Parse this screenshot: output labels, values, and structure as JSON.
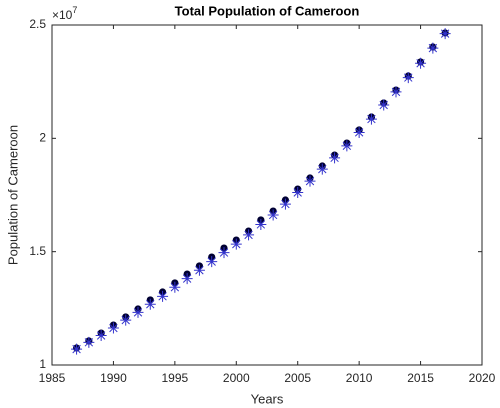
{
  "chart_data": {
    "type": "scatter",
    "title": "Total Population of Cameroon",
    "xlabel": "Years",
    "ylabel": "Population of Cameroon",
    "y_multiplier": {
      "base": "×10",
      "exponent": "7"
    },
    "x": [
      1987,
      1988,
      1989,
      1990,
      1991,
      1992,
      1993,
      1994,
      1995,
      1996,
      1997,
      1998,
      1999,
      2000,
      2001,
      2002,
      2003,
      2004,
      2005,
      2006,
      2007,
      2008,
      2009,
      2010,
      2011,
      2012,
      2013,
      2014,
      2015,
      2016,
      2017
    ],
    "series": [
      {
        "color": "#000033",
        "marker": "dot",
        "values": [
          1.075,
          1.106,
          1.141,
          1.176,
          1.212,
          1.247,
          1.287,
          1.322,
          1.362,
          1.401,
          1.437,
          1.476,
          1.516,
          1.551,
          1.591,
          1.64,
          1.679,
          1.728,
          1.776,
          1.825,
          1.878,
          1.926,
          1.979,
          2.037,
          2.094,
          2.156,
          2.213,
          2.275,
          2.337,
          2.403,
          2.465
        ]
      },
      {
        "color": "#3333cc",
        "marker": "asterisk",
        "values": [
          1.07,
          1.1,
          1.13,
          1.163,
          1.198,
          1.232,
          1.268,
          1.303,
          1.343,
          1.381,
          1.418,
          1.456,
          1.496,
          1.533,
          1.574,
          1.62,
          1.662,
          1.71,
          1.761,
          1.811,
          1.864,
          1.914,
          1.967,
          2.026,
          2.085,
          2.147,
          2.205,
          2.268,
          2.331,
          2.398,
          2.462
        ]
      }
    ],
    "xlim": [
      1985,
      2020
    ],
    "xticks": [
      1985,
      1990,
      1995,
      2000,
      2005,
      2010,
      2015,
      2020
    ],
    "ylim": [
      1,
      2.5
    ],
    "yticks": [
      1,
      1.5,
      2,
      2.5
    ]
  }
}
